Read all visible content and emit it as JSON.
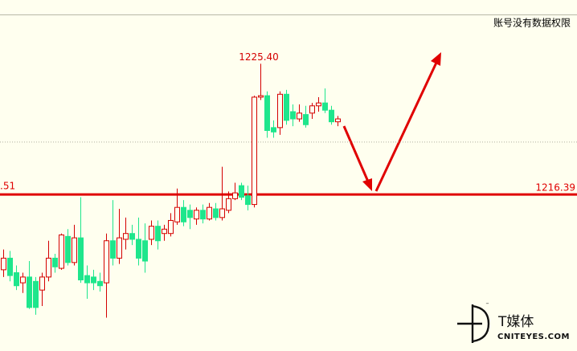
{
  "chart_data": {
    "type": "candlestick",
    "notice": "账号没有数据权限",
    "up_color": "#d40000",
    "down_color": "#1ee68c",
    "ylim": [
      1205.6,
      1228.8
    ],
    "high_marker": {
      "index": 40,
      "value": 1225.4,
      "label": "1225.40"
    },
    "hlines": [
      {
        "value": 1216.39,
        "color": "#e00000",
        "style": "solid",
        "left_label": ".51"
      },
      {
        "value": 1220.0,
        "color": "#b0b0a0",
        "style": "dotted"
      }
    ],
    "ohlc": [
      [
        1211.2,
        1212.6,
        1210.7,
        1212.0
      ],
      [
        1212.0,
        1212.5,
        1210.4,
        1210.8
      ],
      [
        1211.0,
        1211.5,
        1209.8,
        1210.1
      ],
      [
        1210.3,
        1211.0,
        1209.6,
        1210.7
      ],
      [
        1210.7,
        1211.8,
        1208.5,
        1208.6
      ],
      [
        1210.4,
        1210.7,
        1208.1,
        1208.6
      ],
      [
        1209.8,
        1211.0,
        1208.7,
        1210.7
      ],
      [
        1210.7,
        1213.2,
        1210.4,
        1212.0
      ],
      [
        1212.0,
        1212.3,
        1211.0,
        1211.4
      ],
      [
        1211.3,
        1213.7,
        1211.2,
        1213.6
      ],
      [
        1213.5,
        1214.0,
        1211.5,
        1211.7
      ],
      [
        1211.7,
        1214.3,
        1211.5,
        1213.4
      ],
      [
        1213.4,
        1216.2,
        1210.3,
        1210.5
      ],
      [
        1210.8,
        1211.5,
        1209.2,
        1210.3
      ],
      [
        1210.7,
        1211.2,
        1209.8,
        1210.3
      ],
      [
        1210.4,
        1211.0,
        1209.7,
        1210.1
      ],
      [
        1210.3,
        1213.7,
        1207.9,
        1213.2
      ],
      [
        1213.2,
        1216.0,
        1211.5,
        1212.0
      ],
      [
        1212.0,
        1215.4,
        1211.6,
        1213.4
      ],
      [
        1213.3,
        1214.8,
        1212.6,
        1213.7
      ],
      [
        1213.7,
        1214.3,
        1212.9,
        1213.3
      ],
      [
        1213.3,
        1214.8,
        1211.5,
        1212.0
      ],
      [
        1213.2,
        1214.4,
        1211.0,
        1211.8
      ],
      [
        1213.3,
        1214.6,
        1212.9,
        1214.2
      ],
      [
        1214.2,
        1214.6,
        1212.6,
        1213.2
      ],
      [
        1213.7,
        1214.3,
        1213.2,
        1214.0
      ],
      [
        1213.7,
        1215.1,
        1213.5,
        1214.6
      ],
      [
        1214.5,
        1216.8,
        1214.3,
        1215.5
      ],
      [
        1215.5,
        1216.0,
        1214.2,
        1214.5
      ],
      [
        1215.3,
        1215.7,
        1214.0,
        1214.8
      ],
      [
        1214.7,
        1215.5,
        1214.3,
        1215.3
      ],
      [
        1215.3,
        1215.7,
        1214.4,
        1214.7
      ],
      [
        1214.7,
        1215.8,
        1214.6,
        1215.5
      ],
      [
        1215.4,
        1215.8,
        1214.6,
        1214.8
      ],
      [
        1214.8,
        1218.3,
        1214.6,
        1215.4
      ],
      [
        1215.3,
        1216.6,
        1215.1,
        1216.1
      ],
      [
        1216.1,
        1217.2,
        1216.0,
        1216.5
      ],
      [
        1217.0,
        1217.2,
        1216.0,
        1216.2
      ],
      [
        1216.3,
        1217.0,
        1215.3,
        1215.7
      ],
      [
        1215.7,
        1223.2,
        1215.5,
        1223.1
      ],
      [
        1223.1,
        1225.4,
        1222.9,
        1223.2
      ],
      [
        1223.2,
        1223.5,
        1220.3,
        1220.8
      ],
      [
        1221.0,
        1221.5,
        1220.3,
        1220.7
      ],
      [
        1221.0,
        1223.5,
        1220.5,
        1223.3
      ],
      [
        1223.3,
        1223.6,
        1221.2,
        1221.5
      ],
      [
        1222.1,
        1222.6,
        1221.1,
        1221.6
      ],
      [
        1221.6,
        1222.6,
        1221.4,
        1222.0
      ],
      [
        1221.9,
        1222.5,
        1221.0,
        1221.2
      ],
      [
        1222.0,
        1222.7,
        1221.6,
        1222.5
      ],
      [
        1222.5,
        1223.1,
        1222.1,
        1222.7
      ],
      [
        1222.7,
        1223.7,
        1222.0,
        1222.2
      ],
      [
        1222.2,
        1222.5,
        1221.2,
        1221.4
      ],
      [
        1221.4,
        1221.8,
        1221.1,
        1221.6
      ]
    ]
  },
  "watermark": {
    "brand": "T媒体",
    "site": "CNITEYES.COM",
    "tm": "™"
  }
}
